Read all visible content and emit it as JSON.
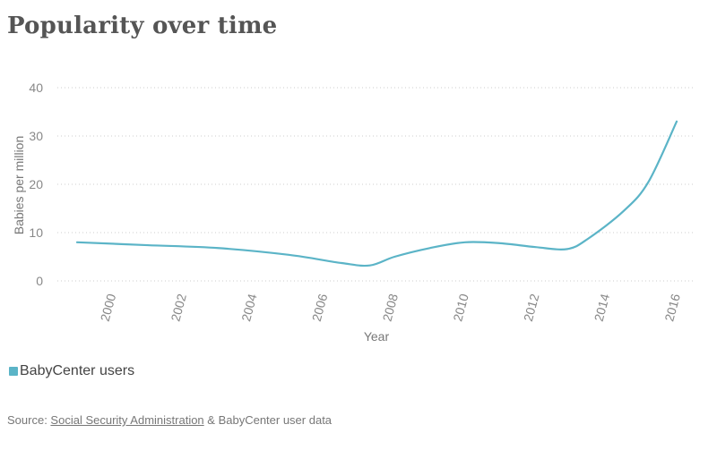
{
  "title": "Popularity over time",
  "legend": {
    "label": "BabyCenter users",
    "color": "#5bb4c7"
  },
  "source": {
    "prefix": "Source: ",
    "link_text": "Social Security Administration",
    "suffix": " & BabyCenter user data"
  },
  "chart_data": {
    "type": "line",
    "xlabel": "Year",
    "ylabel": "Babies per million",
    "xlim": [
      1999,
      2016
    ],
    "ylim": [
      0,
      40
    ],
    "yticks": [
      0,
      10,
      20,
      30,
      40
    ],
    "xticks": [
      2000,
      2002,
      2004,
      2006,
      2008,
      2010,
      2012,
      2014,
      2016
    ],
    "grid": true,
    "legend_position": "bottom-left",
    "series": [
      {
        "name": "BabyCenter users",
        "color": "#5bb4c7",
        "x": [
          1999,
          2001,
          2003,
          2005,
          2006.5,
          2007.3,
          2008,
          2009,
          2010,
          2011,
          2012,
          2012.9,
          2013.5,
          2014.5,
          2015.2,
          2016
        ],
        "y": [
          8,
          7.4,
          6.8,
          5.4,
          3.7,
          3.2,
          5,
          6.8,
          8,
          7.8,
          7,
          6.6,
          8.8,
          14.5,
          20.5,
          33
        ]
      }
    ]
  }
}
